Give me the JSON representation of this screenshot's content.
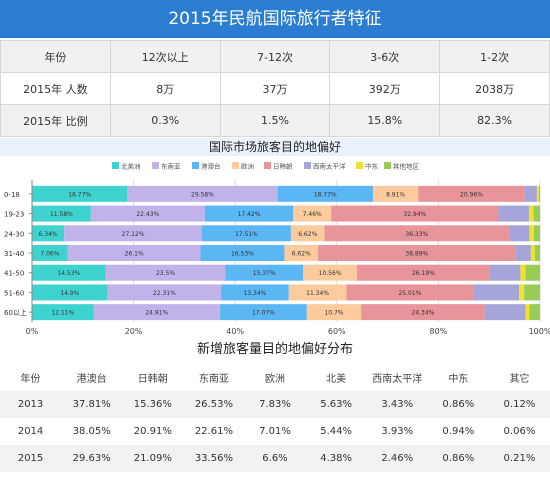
{
  "title": "2015年民航国际旅行者特征",
  "top_table": {
    "header": [
      "年份",
      "12次以上",
      "7-12次",
      "3-6次",
      "1-2次"
    ],
    "rows": [
      [
        "2015年 人数",
        "8万",
        "37万",
        "392万",
        "2038万"
      ],
      [
        "2015年 比例",
        "0.3%",
        "1.5%",
        "15.8%",
        "82.3%"
      ]
    ]
  },
  "chart_title": "国际市场旅客目的地偏好",
  "chart_data": {
    "type": "bar",
    "orientation": "horizontal-stacked-100",
    "categories": [
      "0-18",
      "19-23",
      "24-30",
      "31-40",
      "41-50",
      "51-60",
      "60以上"
    ],
    "series": [
      {
        "name": "北美洲",
        "color": "#3fd3d0",
        "values": [
          18.77,
          11.58,
          6.34,
          7.06,
          14.53,
          14.9,
          12.11
        ]
      },
      {
        "name": "东南亚",
        "color": "#c2b2ea",
        "values": [
          29.58,
          22.43,
          27.12,
          26.1,
          23.5,
          22.31,
          24.91
        ]
      },
      {
        "name": "港澳台",
        "color": "#5bb6f4",
        "values": [
          18.77,
          17.42,
          17.51,
          16.53,
          15.37,
          13.34,
          17.07
        ]
      },
      {
        "name": "欧洲",
        "color": "#fbcb9e",
        "values": [
          8.91,
          7.46,
          6.62,
          6.62,
          10.56,
          11.34,
          10.7
        ]
      },
      {
        "name": "日韩朝",
        "color": "#e7949a",
        "values": [
          20.96,
          32.94,
          36.33,
          38.89,
          26.19,
          25.01,
          24.34
        ]
      },
      {
        "name": "西南太平洋",
        "color": "#a5a5d9",
        "values": [
          2.4,
          6.0,
          4.0,
          3.0,
          6.0,
          9.0,
          8.0
        ]
      },
      {
        "name": "中东",
        "color": "#f0e030",
        "values": [
          0.4,
          0.9,
          0.9,
          0.8,
          1.0,
          1.0,
          0.8
        ]
      },
      {
        "name": "其他地区",
        "color": "#99cc55",
        "values": [
          0.21,
          1.27,
          1.18,
          1.0,
          2.85,
          3.1,
          2.07
        ]
      }
    ],
    "data_label_series": [
      "北美洲",
      "东南亚",
      "港澳台",
      "欧洲",
      "日韩朝"
    ],
    "data_labels": [
      [
        "18.77%",
        "29.58%",
        "18.77%",
        "8.91%",
        "20.96%"
      ],
      [
        "11.58%",
        "22.43%",
        "17.42%",
        "7.46%",
        "32.94%"
      ],
      [
        "6.34%",
        "27.12%",
        "17.51%",
        "6.62%",
        "36.33%"
      ],
      [
        "7.06%",
        "26.1%",
        "16.53%",
        "6.62%",
        "38.89%"
      ],
      [
        "14.53%",
        "23.5%",
        "15.37%",
        "10.56%",
        "26.19%"
      ],
      [
        "14.9%",
        "22.31%",
        "13.34%",
        "11.34%",
        "25.01%"
      ],
      [
        "12.11%",
        "24.91%",
        "17.07%",
        "10.7%",
        "24.34%"
      ]
    ],
    "xlim": [
      0,
      100
    ],
    "x_ticks": [
      "0%",
      "20%",
      "40%",
      "60%",
      "80%",
      "100%"
    ],
    "legend_position": "top",
    "grid": true
  },
  "bottom_title": "新增旅客量目的地偏好分布",
  "bottom_table": {
    "header": [
      "年份",
      "港澳台",
      "日韩朝",
      "东南亚",
      "欧洲",
      "北美",
      "西南太平洋",
      "中东",
      "其它"
    ],
    "rows": [
      [
        "2013",
        "37.81%",
        "15.36%",
        "26.53%",
        "7.83%",
        "5.63%",
        "3.43%",
        "0.86%",
        "0.12%"
      ],
      [
        "2014",
        "38.05%",
        "20.91%",
        "22.61%",
        "7.01%",
        "5.44%",
        "3.93%",
        "0.94%",
        "0.06%"
      ],
      [
        "2015",
        "29.63%",
        "21.09%",
        "33.56%",
        "6.6%",
        "4.38%",
        "2.46%",
        "0.86%",
        "0.21%"
      ]
    ]
  }
}
